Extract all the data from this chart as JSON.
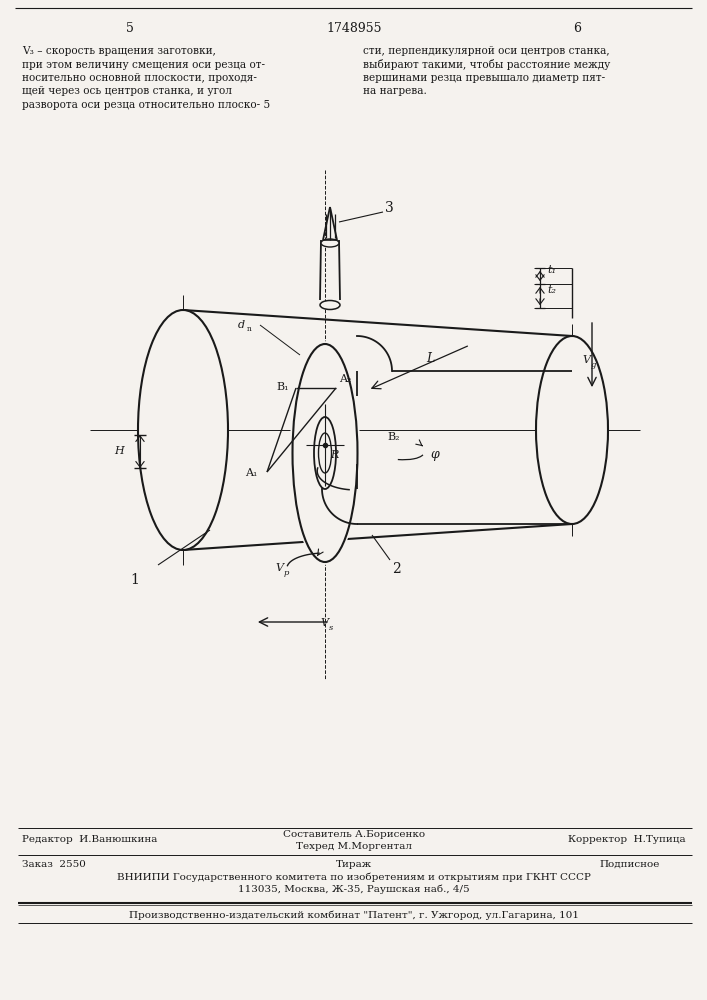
{
  "page_num_left": "5",
  "page_num_center": "1748955",
  "page_num_right": "6",
  "left_col": [
    "V₃ – скорость вращения заготовки,",
    "при этом величину смещения оси резца от-",
    "носительно основной плоскости, проходя-",
    "щей через ось центров станка, и угол",
    "разворота оси резца относительно плоско- 5"
  ],
  "right_col": [
    "сти, перпендикулярной оси центров станка,",
    "выбирают такими, чтобы расстояние между",
    "вершинами резца превышало диаметр пят-",
    "на нагрева."
  ],
  "footer_editor": "Редактор  И.Ванюшкина",
  "footer_composer": "Составитель А.Борисенко",
  "footer_techred": "Техред М.Моргентал",
  "footer_corrector": "Корректор  Н.Тупица",
  "footer_order": "Заказ  2550",
  "footer_circulation": "Тираж",
  "footer_sub": "Подписное",
  "footer_vniiipi": "ВНИИПИ Государственного комитета по изобретениям и открытиям при ГКНТ СССР",
  "footer_addr": "113035, Москва, Ж-35, Раушская наб., 4/5",
  "footer_pub": "Производственно-издательский комбинат \"Патент\", г. Ужгород, ул.Гагарина, 101",
  "bg": "#f5f2ee",
  "lc": "#1a1a1a"
}
